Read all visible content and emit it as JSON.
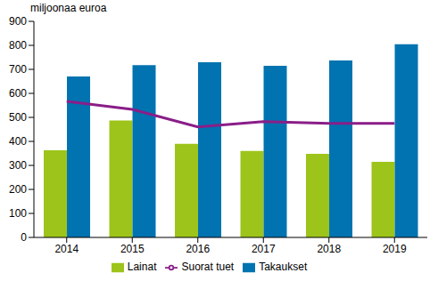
{
  "chart_data": {
    "type": "bar",
    "y_label": "miljoonaa euroa",
    "categories": [
      "2014",
      "2015",
      "2016",
      "2017",
      "2018",
      "2019"
    ],
    "series": [
      {
        "name": "Lainat",
        "type": "bar",
        "color": "#9dc41a",
        "values": [
          363,
          487,
          390,
          360,
          348,
          315
        ]
      },
      {
        "name": "Takaukset",
        "type": "bar",
        "color": "#0073b0",
        "values": [
          670,
          718,
          730,
          715,
          737,
          805
        ]
      },
      {
        "name": "Suorat tuet",
        "type": "line",
        "color": "#8a1e88",
        "values": [
          567,
          533,
          460,
          482,
          475,
          475
        ]
      }
    ],
    "ylim": [
      0,
      900
    ],
    "yticks": [
      0,
      100,
      200,
      300,
      400,
      500,
      600,
      700,
      800,
      900
    ],
    "grid": false,
    "legend": "bottom"
  }
}
